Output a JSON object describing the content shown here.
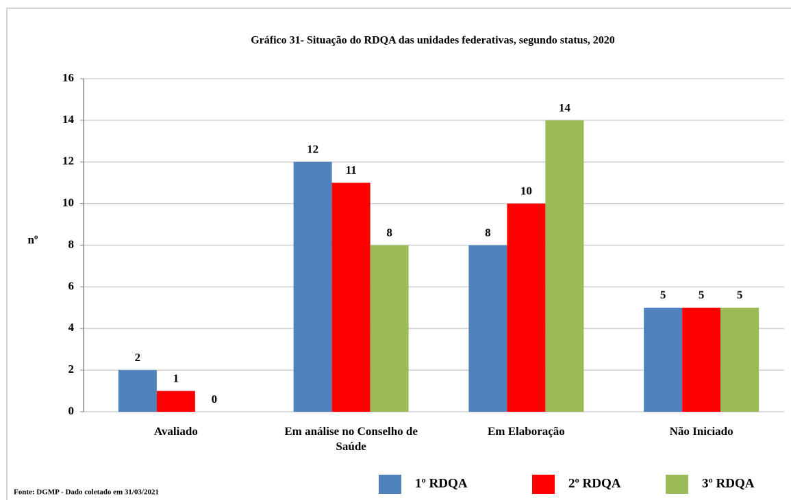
{
  "chart_data": {
    "type": "bar",
    "title": "Gráfico 31- Situação do RDQA das unidades federativas,  segundo status, 2020",
    "y_label": "nº",
    "source": "Fonte: DGMP - Dado coletado em 31/03/2021",
    "categories": [
      "Avaliado",
      "Em análise no Conselho de Saúde",
      "Em Elaboração",
      "Não Iniciado"
    ],
    "series": [
      {
        "name": "1º RDQA",
        "color": "#4f81bd",
        "values": [
          2,
          12,
          8,
          5
        ]
      },
      {
        "name": "2º RDQA",
        "color": "#ff0000",
        "values": [
          1,
          11,
          10,
          5
        ]
      },
      {
        "name": "3º RDQA",
        "color": "#9bbb59",
        "values": [
          0,
          8,
          14,
          5
        ]
      }
    ],
    "ylim": [
      0,
      16
    ],
    "yticks": [
      0,
      2,
      4,
      6,
      8,
      10,
      12,
      14,
      16
    ],
    "grid": true,
    "legend": "bottom"
  }
}
